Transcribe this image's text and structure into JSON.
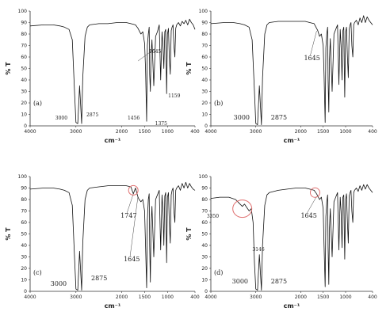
{
  "chart_data": [
    {
      "type": "line",
      "panel_label": "(a)",
      "xlabel": "cm⁻¹",
      "ylabel": "% T",
      "xlim": [
        4000,
        400
      ],
      "ylim": [
        0,
        100
      ],
      "xticks": [
        "4000",
        "3000",
        "2000",
        "1500",
        "1000",
        "400"
      ],
      "xtick_values": [
        4000,
        3000,
        2000,
        1500,
        1000,
        400
      ],
      "yticks": [
        "0",
        "10",
        "20",
        "30",
        "40",
        "50",
        "60",
        "70",
        "80",
        "90",
        "100"
      ],
      "x": [
        4000,
        3700,
        3500,
        3350,
        3250,
        3150,
        3080,
        3030,
        3000,
        2960,
        2920,
        2875,
        2850,
        2800,
        2750,
        2700,
        2500,
        2300,
        2100,
        1900,
        1800,
        1700,
        1645,
        1620,
        1580,
        1540,
        1500,
        1480,
        1456,
        1440,
        1420,
        1400,
        1390,
        1375,
        1360,
        1340,
        1300,
        1260,
        1220,
        1180,
        1150,
        1120,
        1100,
        1080,
        1060,
        1040,
        1020,
        1000,
        980,
        960,
        940,
        920,
        900,
        880,
        860,
        840,
        820,
        800,
        760,
        720,
        680,
        640,
        600,
        560,
        520,
        480,
        440,
        400
      ],
      "y": [
        87,
        88,
        88,
        87,
        86,
        84,
        75,
        30,
        3,
        2,
        35,
        2,
        42,
        78,
        86,
        88,
        89,
        89,
        90,
        90,
        89,
        88,
        85,
        83,
        80,
        82,
        72,
        50,
        4,
        70,
        80,
        86,
        45,
        30,
        60,
        75,
        35,
        78,
        82,
        88,
        40,
        82,
        70,
        50,
        82,
        84,
        28,
        80,
        85,
        60,
        45,
        83,
        86,
        88,
        70,
        60,
        85,
        88,
        90,
        87,
        91,
        89,
        92,
        88,
        93,
        90,
        88,
        84
      ],
      "annotations": [
        {
          "text": "3000",
          "x": 3000
        },
        {
          "text": "2875",
          "x": 2875
        },
        {
          "text": "1645",
          "x": 1645
        },
        {
          "text": "1456",
          "x": 1456
        },
        {
          "text": "1375",
          "x": 1375
        },
        {
          "text": "1159",
          "x": 1159
        }
      ]
    },
    {
      "type": "line",
      "panel_label": "(b)",
      "xlabel": "cm⁻¹",
      "ylabel": "% T",
      "xlim": [
        4000,
        400
      ],
      "ylim": [
        0,
        100
      ],
      "xticks": [
        "4000",
        "3000",
        "2000",
        "1500",
        "1000",
        "400"
      ],
      "xtick_values": [
        4000,
        3000,
        2000,
        1500,
        1000,
        400
      ],
      "yticks": [
        "0",
        "10",
        "20",
        "30",
        "40",
        "50",
        "60",
        "70",
        "80",
        "90",
        "100"
      ],
      "x": [
        4000,
        3700,
        3500,
        3350,
        3250,
        3150,
        3080,
        3030,
        3000,
        2960,
        2920,
        2875,
        2850,
        2800,
        2750,
        2700,
        2500,
        2300,
        2100,
        1900,
        1800,
        1700,
        1645,
        1620,
        1580,
        1540,
        1500,
        1480,
        1456,
        1440,
        1420,
        1400,
        1390,
        1375,
        1360,
        1340,
        1300,
        1260,
        1220,
        1180,
        1150,
        1120,
        1100,
        1080,
        1060,
        1040,
        1020,
        1000,
        980,
        960,
        940,
        920,
        900,
        880,
        860,
        840,
        820,
        800,
        760,
        720,
        680,
        640,
        600,
        560,
        520,
        480,
        440,
        400
      ],
      "y": [
        89,
        90,
        90,
        89,
        88,
        86,
        75,
        30,
        2,
        1,
        35,
        1,
        42,
        80,
        88,
        90,
        91,
        91,
        91,
        91,
        90,
        89,
        85,
        83,
        78,
        80,
        70,
        45,
        3,
        68,
        80,
        86,
        40,
        12,
        58,
        76,
        30,
        80,
        84,
        88,
        36,
        84,
        70,
        40,
        83,
        86,
        25,
        82,
        86,
        60,
        42,
        84,
        88,
        90,
        70,
        60,
        88,
        90,
        92,
        88,
        94,
        90,
        96,
        90,
        95,
        92,
        90,
        88
      ],
      "annotations": [
        {
          "text": "3000",
          "x": 3000
        },
        {
          "text": "2875",
          "x": 2875
        },
        {
          "text": "1645",
          "x": 1645
        }
      ]
    },
    {
      "type": "line",
      "panel_label": "(c)",
      "xlabel": "cm⁻¹",
      "ylabel": "% T",
      "xlim": [
        4000,
        400
      ],
      "ylim": [
        0,
        100
      ],
      "xticks": [
        "4000",
        "3000",
        "2000",
        "1500",
        "1000",
        "400"
      ],
      "xtick_values": [
        4000,
        3000,
        2000,
        1500,
        1000,
        400
      ],
      "yticks": [
        "0",
        "10",
        "20",
        "30",
        "40",
        "50",
        "60",
        "70",
        "80",
        "90",
        "100"
      ],
      "x": [
        4000,
        3700,
        3500,
        3350,
        3250,
        3150,
        3080,
        3030,
        3000,
        2960,
        2920,
        2875,
        2850,
        2800,
        2750,
        2700,
        2500,
        2300,
        2100,
        1900,
        1800,
        1747,
        1700,
        1645,
        1620,
        1580,
        1540,
        1500,
        1480,
        1456,
        1440,
        1420,
        1400,
        1390,
        1375,
        1360,
        1340,
        1300,
        1260,
        1220,
        1180,
        1150,
        1120,
        1100,
        1080,
        1060,
        1040,
        1020,
        1000,
        980,
        960,
        940,
        920,
        900,
        880,
        860,
        840,
        820,
        800,
        760,
        720,
        680,
        640,
        600,
        560,
        520,
        480,
        440,
        400
      ],
      "y": [
        89,
        90,
        90,
        89,
        88,
        86,
        75,
        30,
        2,
        1,
        35,
        1,
        42,
        80,
        88,
        90,
        91,
        92,
        92,
        92,
        91,
        85,
        90,
        82,
        80,
        78,
        80,
        70,
        40,
        3,
        62,
        80,
        85,
        40,
        8,
        55,
        74,
        30,
        80,
        84,
        88,
        36,
        84,
        70,
        40,
        83,
        86,
        25,
        82,
        86,
        60,
        42,
        84,
        88,
        90,
        70,
        60,
        88,
        90,
        92,
        88,
        94,
        90,
        95,
        90,
        94,
        91,
        89,
        88
      ],
      "annotations": [
        {
          "text": "3000",
          "x": 3000
        },
        {
          "text": "2875",
          "x": 2875
        },
        {
          "text": "1747",
          "x": 1747
        },
        {
          "text": "1645",
          "x": 1645
        }
      ]
    },
    {
      "type": "line",
      "panel_label": "(d)",
      "xlabel": "cm⁻¹",
      "ylabel": "% T",
      "xlim": [
        4000,
        400
      ],
      "ylim": [
        0,
        100
      ],
      "xticks": [
        "4000",
        "3000",
        "2000",
        "1500",
        "1000",
        "400"
      ],
      "xtick_values": [
        4000,
        3000,
        2000,
        1500,
        1000,
        400
      ],
      "yticks": [
        "0",
        "10",
        "20",
        "30",
        "40",
        "50",
        "60",
        "70",
        "80",
        "90",
        "100"
      ],
      "x": [
        4000,
        3800,
        3600,
        3450,
        3350,
        3300,
        3250,
        3200,
        3146,
        3100,
        3060,
        3030,
        3000,
        2960,
        2920,
        2875,
        2850,
        2800,
        2750,
        2700,
        2500,
        2300,
        2100,
        1900,
        1800,
        1700,
        1645,
        1620,
        1580,
        1540,
        1500,
        1480,
        1456,
        1440,
        1420,
        1400,
        1390,
        1375,
        1360,
        1340,
        1300,
        1260,
        1220,
        1180,
        1150,
        1120,
        1100,
        1080,
        1060,
        1040,
        1020,
        1000,
        980,
        960,
        940,
        920,
        900,
        880,
        860,
        840,
        820,
        800,
        760,
        720,
        680,
        640,
        600,
        560,
        520,
        480,
        440,
        400
      ],
      "y": [
        81,
        82,
        82,
        80,
        76,
        74,
        76,
        73,
        70,
        72,
        60,
        25,
        2,
        1,
        32,
        1,
        40,
        75,
        84,
        86,
        88,
        89,
        90,
        90,
        89,
        88,
        85,
        83,
        80,
        82,
        72,
        40,
        4,
        65,
        78,
        84,
        38,
        6,
        55,
        72,
        30,
        78,
        82,
        86,
        36,
        82,
        70,
        38,
        82,
        84,
        28,
        80,
        85,
        60,
        42,
        83,
        86,
        88,
        70,
        60,
        86,
        88,
        90,
        87,
        92,
        88,
        93,
        89,
        93,
        90,
        88,
        86
      ],
      "annotations": [
        {
          "text": "3350",
          "x": 3350
        },
        {
          "text": "3146",
          "x": 3146
        },
        {
          "text": "3000",
          "x": 3000
        },
        {
          "text": "2875",
          "x": 2875
        },
        {
          "text": "1645",
          "x": 1645
        }
      ]
    }
  ]
}
